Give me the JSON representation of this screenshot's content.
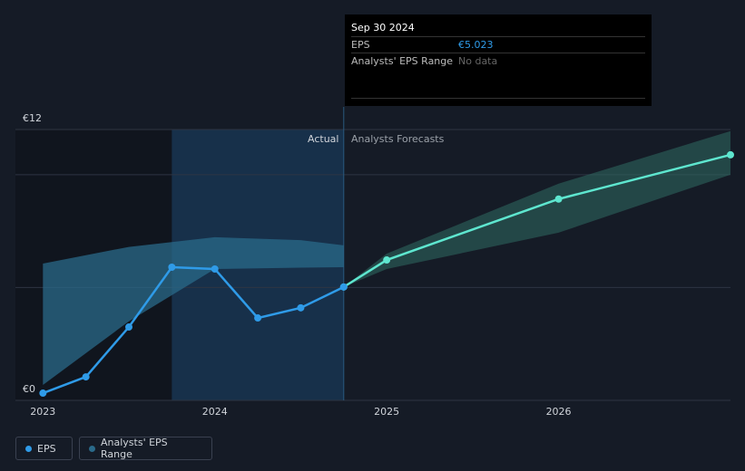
{
  "chart_data": {
    "type": "line",
    "xlim": [
      2022.84,
      2027
    ],
    "ylim": [
      0,
      12
    ],
    "xticks": [
      2023,
      2024,
      2025,
      2026
    ],
    "yticks": [
      {
        "value": 0,
        "label": "€0"
      },
      {
        "value": 12,
        "label": "€12"
      }
    ],
    "ygrid": [
      5,
      10
    ],
    "actual_label": "Actual",
    "forecast_label": "Analysts Forecasts",
    "series": [
      {
        "name": "EPS",
        "color": "#2f9be8",
        "x": [
          2023.0,
          2023.25,
          2023.5,
          2023.75,
          2024.0,
          2024.25,
          2024.5,
          2024.75
        ],
        "values": [
          0.32,
          1.04,
          3.25,
          5.9,
          5.82,
          3.65,
          4.1,
          5.023
        ]
      }
    ],
    "forecast": {
      "color": "#5ee6cf",
      "x": [
        2024.75,
        2025,
        2026,
        2027
      ],
      "values": [
        5.023,
        6.22,
        8.92,
        10.88
      ]
    },
    "range": {
      "name": "Analysts' EPS Range",
      "color": "#2a6a8a",
      "past": {
        "x": [
          2023.0,
          2023.5,
          2024.0,
          2024.5,
          2024.75
        ],
        "high": [
          6.06,
          6.8,
          7.23,
          7.1,
          6.87
        ],
        "low": [
          0.68,
          3.5,
          5.82,
          5.88,
          5.9
        ]
      },
      "forecast": {
        "x": [
          2024.75,
          2025,
          2026,
          2027
        ],
        "high": [
          5.023,
          6.5,
          9.6,
          11.93
        ],
        "low": [
          5.023,
          5.82,
          7.43,
          10.0
        ]
      }
    },
    "tooltip": {
      "title": "Sep 30 2024",
      "rows": [
        [
          "EPS",
          "€5.023"
        ],
        [
          "Analysts' EPS Range",
          "No data"
        ]
      ]
    }
  }
}
